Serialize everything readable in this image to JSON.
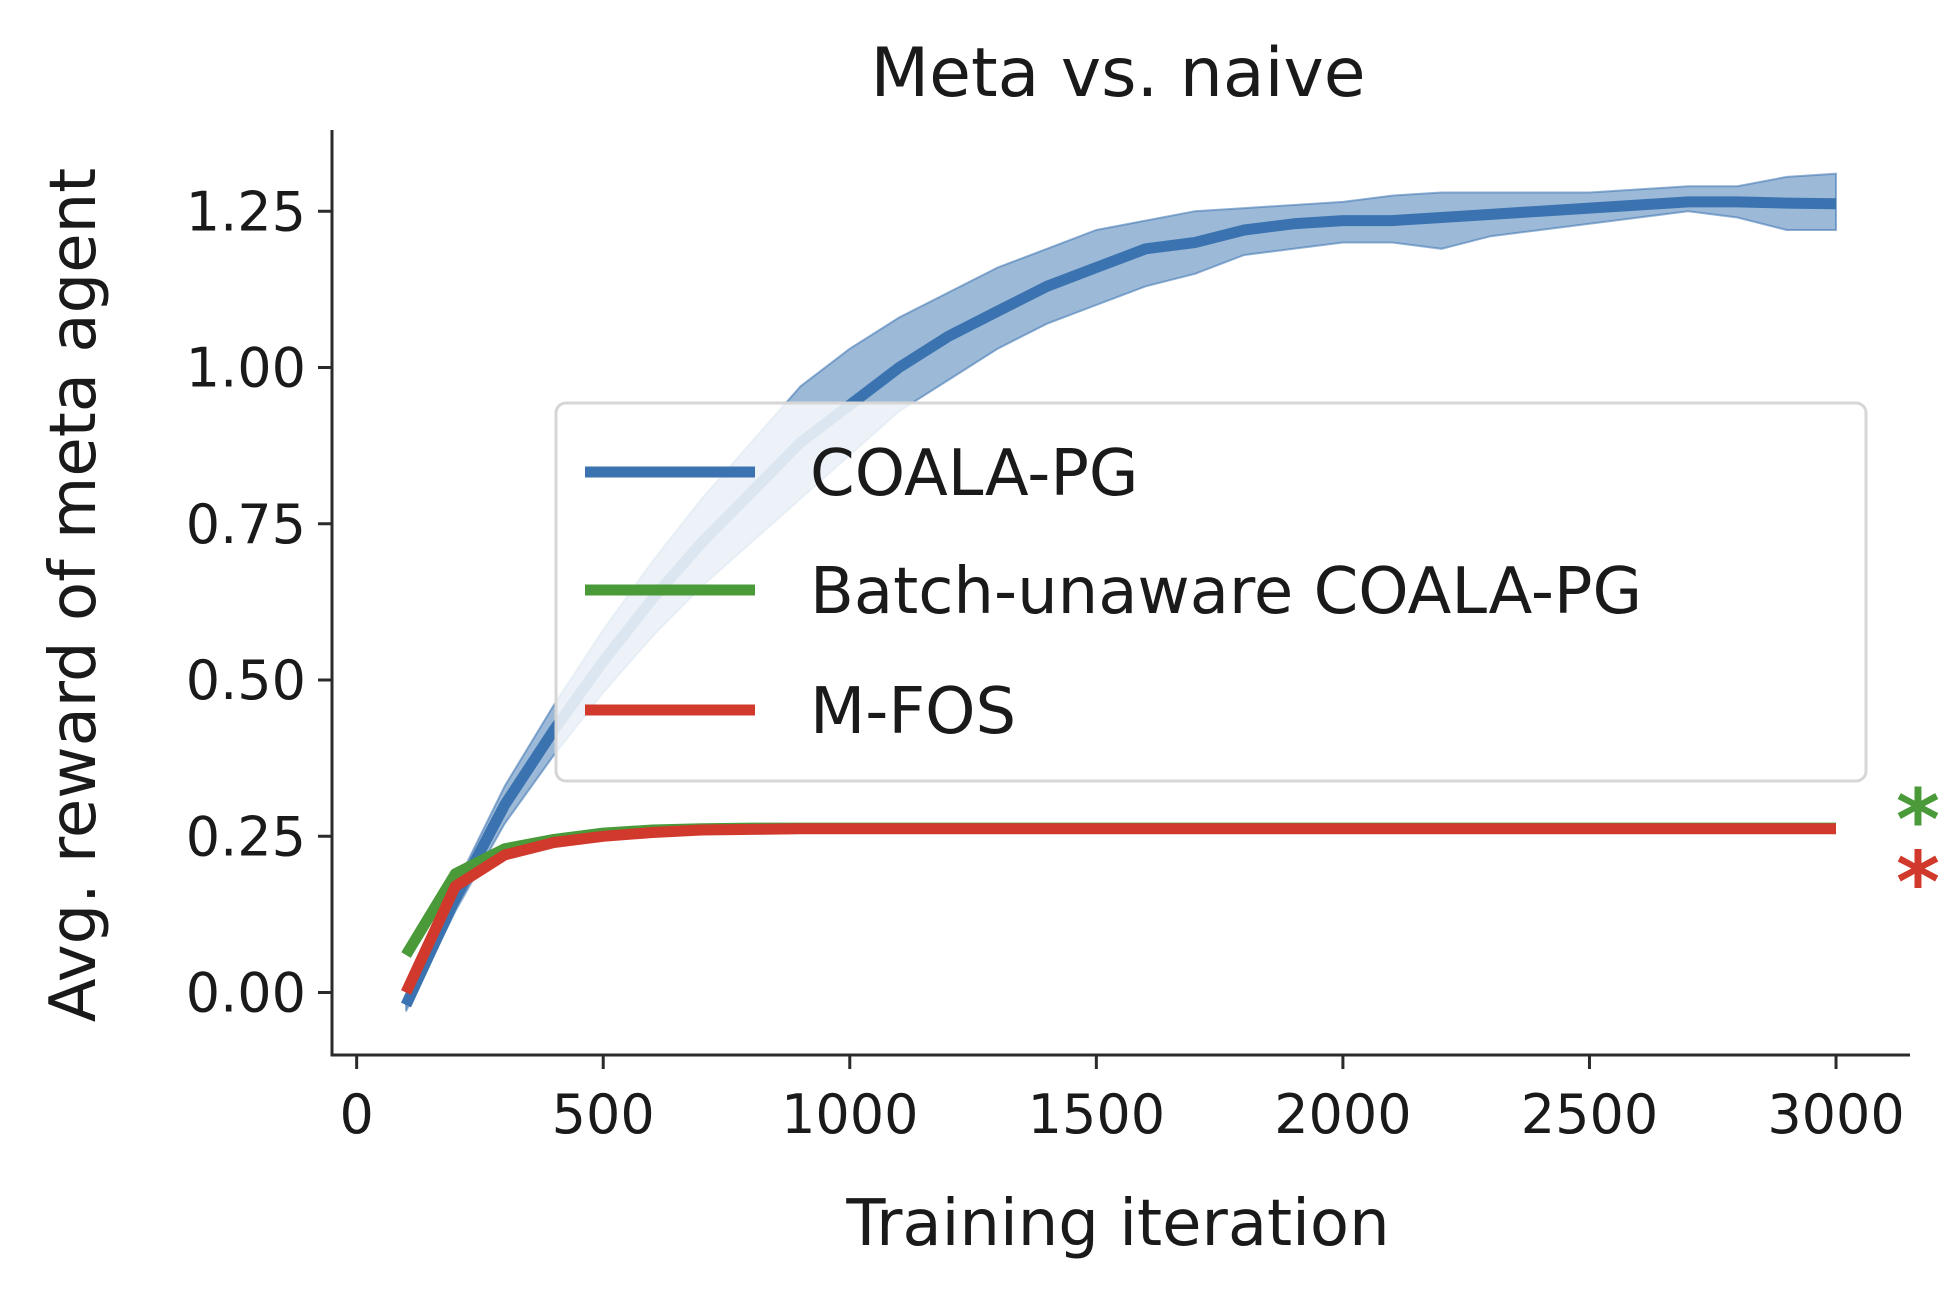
{
  "chart_data": {
    "type": "line",
    "title": "Meta vs. naive",
    "xlabel": "Training iteration",
    "ylabel": "Avg. reward of meta agent",
    "xlim": [
      -50,
      3150
    ],
    "ylim": [
      -0.1,
      1.38
    ],
    "xticks": [
      0,
      500,
      1000,
      1500,
      2000,
      2500,
      3000
    ],
    "xtick_labels": [
      "0",
      "500",
      "1000",
      "1500",
      "2000",
      "2500",
      "3000"
    ],
    "yticks": [
      0.0,
      0.25,
      0.5,
      0.75,
      1.0,
      1.25
    ],
    "ytick_labels": [
      "0.00",
      "0.25",
      "0.50",
      "0.75",
      "1.00",
      "1.25"
    ],
    "legend_position": "center-right",
    "series": [
      {
        "name": "COALA-PG",
        "color": "#3a73b0",
        "x": [
          100,
          200,
          300,
          400,
          500,
          600,
          700,
          800,
          900,
          1000,
          1100,
          1200,
          1300,
          1400,
          1500,
          1600,
          1700,
          1800,
          1900,
          2000,
          2100,
          2200,
          2300,
          2400,
          2500,
          2600,
          2700,
          2800,
          2900,
          3000
        ],
        "values": [
          -0.02,
          0.15,
          0.3,
          0.42,
          0.53,
          0.63,
          0.72,
          0.8,
          0.88,
          0.94,
          1.0,
          1.05,
          1.09,
          1.13,
          1.16,
          1.19,
          1.2,
          1.22,
          1.23,
          1.235,
          1.235,
          1.24,
          1.245,
          1.25,
          1.255,
          1.26,
          1.265,
          1.265,
          1.263,
          1.262
        ],
        "lower": [
          -0.03,
          0.13,
          0.27,
          0.38,
          0.48,
          0.57,
          0.65,
          0.72,
          0.79,
          0.86,
          0.93,
          0.98,
          1.03,
          1.07,
          1.1,
          1.13,
          1.15,
          1.18,
          1.19,
          1.2,
          1.2,
          1.19,
          1.21,
          1.22,
          1.23,
          1.24,
          1.25,
          1.24,
          1.22,
          1.22
        ],
        "upper": [
          -0.01,
          0.17,
          0.33,
          0.46,
          0.58,
          0.69,
          0.79,
          0.88,
          0.97,
          1.03,
          1.08,
          1.12,
          1.16,
          1.19,
          1.22,
          1.235,
          1.25,
          1.255,
          1.26,
          1.265,
          1.275,
          1.28,
          1.28,
          1.28,
          1.28,
          1.285,
          1.29,
          1.29,
          1.305,
          1.31
        ]
      },
      {
        "name": "Batch-unaware COALA-PG",
        "color": "#4a9a3a",
        "x": [
          100,
          200,
          300,
          400,
          500,
          600,
          700,
          800,
          900,
          1000,
          1500,
          2000,
          2500,
          3000
        ],
        "values": [
          0.06,
          0.19,
          0.23,
          0.245,
          0.255,
          0.26,
          0.262,
          0.263,
          0.263,
          0.263,
          0.263,
          0.263,
          0.263,
          0.263
        ]
      },
      {
        "name": "M-FOS",
        "color": "#d0392b",
        "x": [
          100,
          200,
          300,
          400,
          500,
          600,
          700,
          800,
          900,
          1000,
          1500,
          2000,
          2500,
          3000
        ],
        "values": [
          0.0,
          0.17,
          0.22,
          0.24,
          0.25,
          0.256,
          0.26,
          0.261,
          0.262,
          0.262,
          0.262,
          0.262,
          0.262,
          0.262
        ]
      }
    ],
    "annotations": [
      {
        "text": "*",
        "color": "#4a9a3a",
        "y": 0.3
      },
      {
        "text": "*",
        "color": "#d0392b",
        "y": 0.2
      }
    ]
  }
}
